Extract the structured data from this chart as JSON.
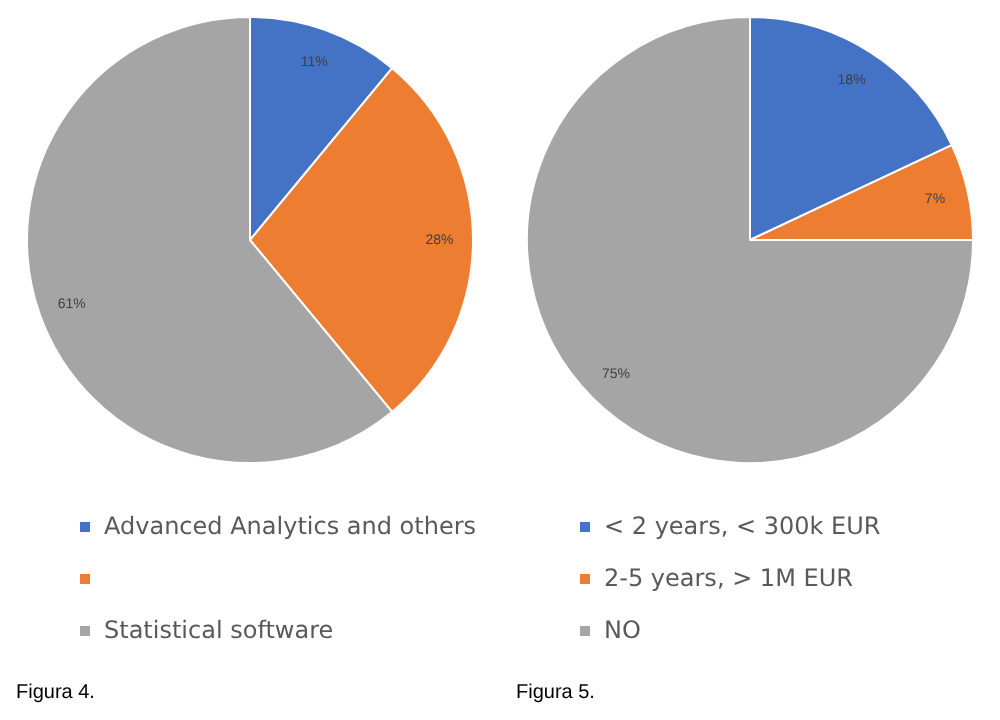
{
  "chart_data": [
    {
      "type": "pie",
      "categories": [
        "Advanced Analytics and others",
        null,
        "Statistical software"
      ],
      "values": [
        11,
        28,
        61
      ],
      "colors": [
        "#4472c4",
        "#ed7d31",
        "#a5a5a5"
      ],
      "value_labels": [
        "11%",
        "28%",
        "61%"
      ],
      "legend": "bottom",
      "annotations": [
        "Figura 4."
      ]
    },
    {
      "type": "pie",
      "categories": [
        "< 2 years, < 300k EUR",
        "2-5 years, > 1M EUR",
        "NO"
      ],
      "values": [
        18,
        7,
        75
      ],
      "colors": [
        "#4472c4",
        "#ed7d31",
        "#a5a5a5"
      ],
      "value_labels": [
        "18%",
        "7%",
        "75%"
      ],
      "legend": "bottom",
      "annotations": [
        "Figura 5."
      ]
    }
  ]
}
